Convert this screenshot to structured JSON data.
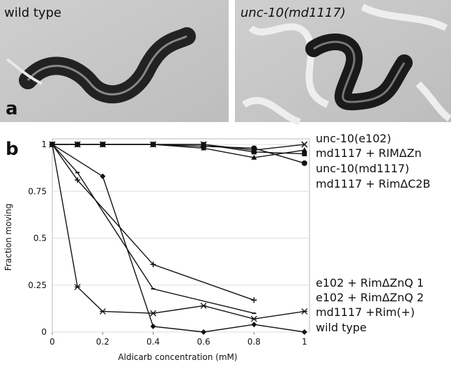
{
  "figure": {
    "panel_a": {
      "letter": "a",
      "left_caption": "wild type",
      "right_caption": "unc-10(md1117)"
    },
    "panel_b": {
      "letter": "b"
    }
  },
  "chart_data": {
    "type": "line",
    "xlabel": "Aldicarb concentration (mM)",
    "ylabel": "Fraction moving",
    "xlim": [
      0,
      1.02
    ],
    "ylim": [
      0,
      1.03
    ],
    "xticks": [
      0,
      0.2,
      0.4,
      0.6,
      0.8,
      1
    ],
    "yticks": [
      0,
      0.25,
      0.5,
      0.75,
      1
    ],
    "series": [
      {
        "name": "unc-10(e102)",
        "marker": "x",
        "color": "#111111",
        "x": [
          0,
          0.1,
          0.2,
          0.4,
          0.6,
          0.8,
          1
        ],
        "values": [
          1,
          1,
          1,
          1,
          1,
          0.97,
          1
        ]
      },
      {
        "name": "md1117 + RIMΔZn",
        "marker": "square",
        "color": "#111111",
        "x": [
          0,
          0.1,
          0.2,
          0.4,
          0.6,
          0.8,
          1
        ],
        "values": [
          1,
          1,
          1,
          1,
          1,
          0.96,
          0.95
        ]
      },
      {
        "name": "unc-10(md1117)",
        "marker": "circle",
        "color": "#111111",
        "x": [
          0,
          0.1,
          0.2,
          0.4,
          0.6,
          0.8,
          1
        ],
        "values": [
          1,
          1,
          1,
          1,
          0.99,
          0.98,
          0.9
        ]
      },
      {
        "name": "md1117 + RimΔC2B",
        "marker": "triangle",
        "color": "#111111",
        "x": [
          0,
          0.1,
          0.2,
          0.4,
          0.6,
          0.8,
          1
        ],
        "values": [
          1,
          1,
          1,
          1,
          0.98,
          0.93,
          0.97
        ]
      },
      {
        "name": "e102 + RimΔZnQ 1",
        "marker": "plus",
        "color": "#111111",
        "x": [
          0,
          0.1,
          0.4,
          0.8
        ],
        "values": [
          1,
          0.81,
          0.36,
          0.17
        ]
      },
      {
        "name": "e102 + RimΔZnQ 2",
        "marker": "dash",
        "color": "#111111",
        "x": [
          0,
          0.1,
          0.4,
          0.8
        ],
        "values": [
          1,
          0.85,
          0.23,
          0.1
        ]
      },
      {
        "name": "md1117 +Rim(+)",
        "marker": "asterisk",
        "color": "#111111",
        "x": [
          0,
          0.1,
          0.2,
          0.4,
          0.6,
          0.8,
          1
        ],
        "values": [
          1,
          0.24,
          0.11,
          0.1,
          0.14,
          0.07,
          0.11
        ]
      },
      {
        "name": "wild type",
        "marker": "diamond",
        "color": "#111111",
        "x": [
          0,
          0.2,
          0.4,
          0.6,
          0.8,
          1
        ],
        "values": [
          1,
          0.83,
          0.03,
          0,
          0.04,
          0
        ]
      }
    ]
  }
}
